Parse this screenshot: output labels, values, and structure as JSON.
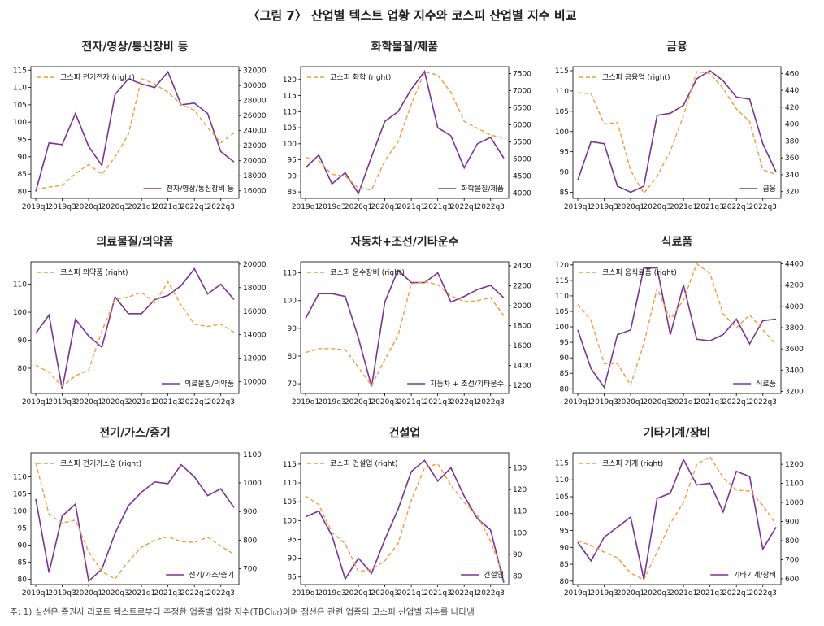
{
  "figure_title": "〈그림 7〉 산업별 텍스트 업황 지수와 코스피 산업별 지수 비교",
  "footnote": "주: 1) 실선은 증권사 리포트 텍스트로부터 추정한 업종별 업황 지수(TBCIᵢ,ₜ)이며 점선은 관련 업종의 코스피 산업별 지수를 나타냄",
  "colors": {
    "text_index": "#7B3294",
    "kospi_index": "#F59A3C"
  },
  "chart_data": [
    {
      "type": "line",
      "title": "전자/영상/통신장비 등",
      "x": [
        "2019q1",
        "2019q2",
        "2019q3",
        "2019q4",
        "2020q1",
        "2020q2",
        "2020q3",
        "2020q4",
        "2021q1",
        "2021q2",
        "2021q3",
        "2021q4",
        "2022q1",
        "2022q2",
        "2022q3",
        "2022q4"
      ],
      "x_tick_labels": [
        "2019q1",
        "2019q3",
        "2020q1",
        "2020q3",
        "2021q1",
        "2021q3",
        "2022q1",
        "2022q3"
      ],
      "ylim_left": [
        78,
        116
      ],
      "yticks_left": [
        80,
        85,
        90,
        95,
        100,
        105,
        110,
        115
      ],
      "ylim_right": [
        15000,
        32500
      ],
      "yticks_right": [
        16000,
        18000,
        20000,
        22000,
        24000,
        26000,
        28000,
        30000,
        32000
      ],
      "series": [
        {
          "name": "전자/영상/통신장비 등",
          "axis": "left",
          "style": "solid",
          "values": [
            80,
            94,
            93.5,
            102.5,
            93,
            87.5,
            108,
            112.5,
            111,
            110,
            114.5,
            105,
            105.5,
            102.5,
            91.5,
            88.5
          ]
        },
        {
          "name": "코스피 전기전자 (right)",
          "axis": "right",
          "style": "dashed",
          "values": [
            16200,
            16500,
            16700,
            18300,
            19500,
            18200,
            20500,
            23500,
            30900,
            30200,
            29100,
            27500,
            26700,
            24400,
            22400,
            23700
          ]
        }
      ],
      "legend": {
        "solid_position": "lower-right",
        "dashed_position": "upper-left"
      }
    },
    {
      "type": "line",
      "title": "화학물질/제품",
      "x": [
        "2019q1",
        "2019q2",
        "2019q3",
        "2019q4",
        "2020q1",
        "2020q2",
        "2020q3",
        "2020q4",
        "2021q1",
        "2021q2",
        "2021q3",
        "2021q4",
        "2022q1",
        "2022q2",
        "2022q3",
        "2022q4"
      ],
      "x_tick_labels": [
        "2019q1",
        "2019q3",
        "2020q1",
        "2020q3",
        "2021q1",
        "2021q3",
        "2022q1",
        "2022q3"
      ],
      "ylim_left": [
        83,
        124
      ],
      "yticks_left": [
        85,
        90,
        95,
        100,
        105,
        110,
        115,
        120
      ],
      "ylim_right": [
        3850,
        7700
      ],
      "yticks_right": [
        4000,
        4500,
        5000,
        5500,
        6000,
        6500,
        7000,
        7500
      ],
      "series": [
        {
          "name": "화학물질/제품",
          "axis": "left",
          "style": "solid",
          "values": [
            92.5,
            96.5,
            87.5,
            91,
            84.5,
            96,
            107,
            110,
            117,
            122.5,
            105,
            102.5,
            92.5,
            100,
            102,
            95.5
          ]
        },
        {
          "name": "코스피 화학 (right)",
          "axis": "right",
          "style": "dashed",
          "values": [
            5050,
            4950,
            4550,
            4500,
            4150,
            4100,
            4950,
            5500,
            6600,
            7550,
            7450,
            6950,
            6100,
            5900,
            5700,
            5620
          ]
        }
      ],
      "legend": {
        "solid_position": "lower-right",
        "dashed_position": "upper-left"
      }
    },
    {
      "type": "line",
      "title": "금융",
      "x": [
        "2019q1",
        "2019q2",
        "2019q3",
        "2019q4",
        "2020q1",
        "2020q2",
        "2020q3",
        "2020q4",
        "2021q1",
        "2021q2",
        "2021q3",
        "2021q4",
        "2022q1",
        "2022q2",
        "2022q3",
        "2022q4"
      ],
      "x_tick_labels": [
        "2019q1",
        "2019q3",
        "2020q1",
        "2020q3",
        "2021q1",
        "2021q3",
        "2022q1",
        "2022q3"
      ],
      "ylim_left": [
        83.5,
        116
      ],
      "yticks_left": [
        85,
        90,
        95,
        100,
        105,
        110,
        115
      ],
      "ylim_right": [
        312,
        468
      ],
      "yticks_right": [
        320,
        340,
        360,
        380,
        400,
        420,
        440,
        460
      ],
      "series": [
        {
          "name": "금융",
          "axis": "left",
          "style": "solid",
          "values": [
            88,
            97.5,
            97,
            86.5,
            85,
            86.5,
            104,
            104.5,
            106.5,
            113,
            115,
            112.5,
            108.5,
            108,
            97,
            90
          ]
        },
        {
          "name": "코스피 금융업 (right)",
          "axis": "right",
          "style": "dashed",
          "values": [
            437,
            436,
            400,
            402,
            345,
            318,
            338,
            368,
            410,
            462,
            460,
            442,
            418,
            403,
            346,
            340
          ]
        }
      ],
      "legend": {
        "solid_position": "lower-right",
        "dashed_position": "upper-left"
      }
    },
    {
      "type": "line",
      "title": "의료물질/의약품",
      "x": [
        "2019q1",
        "2019q2",
        "2019q3",
        "2019q4",
        "2020q1",
        "2020q2",
        "2020q3",
        "2020q4",
        "2021q1",
        "2021q2",
        "2021q3",
        "2021q4",
        "2022q1",
        "2022q2",
        "2022q3",
        "2022q4"
      ],
      "x_tick_labels": [
        "2019q1",
        "2019q3",
        "2020q1",
        "2020q3",
        "2021q1",
        "2021q3",
        "2022q1",
        "2022q3"
      ],
      "ylim_left": [
        71,
        118
      ],
      "yticks_left": [
        80,
        90,
        100,
        110
      ],
      "ylim_right": [
        9000,
        20200
      ],
      "yticks_right": [
        10000,
        12000,
        14000,
        16000,
        18000,
        20000
      ],
      "series": [
        {
          "name": "의료물질/의약품",
          "axis": "left",
          "style": "solid",
          "values": [
            92.5,
            99,
            72.5,
            97.5,
            91.5,
            87.5,
            105.5,
            99.5,
            99.5,
            104.5,
            106,
            109.5,
            115.5,
            106.5,
            110,
            104.5
          ]
        },
        {
          "name": "코스피 의약품 (right)",
          "axis": "right",
          "style": "dashed",
          "values": [
            11400,
            10800,
            9600,
            10500,
            11000,
            14300,
            17000,
            17200,
            17600,
            16700,
            18500,
            16500,
            14900,
            14700,
            14900,
            14200
          ]
        }
      ],
      "legend": {
        "solid_position": "lower-right",
        "dashed_position": "upper-left"
      }
    },
    {
      "type": "line",
      "title": "자동차+조선/기타운수",
      "x": [
        "2019q1",
        "2019q2",
        "2019q3",
        "2019q4",
        "2020q1",
        "2020q2",
        "2020q3",
        "2020q4",
        "2021q1",
        "2021q2",
        "2021q3",
        "2021q4",
        "2022q1",
        "2022q2",
        "2022q3",
        "2022q4"
      ],
      "x_tick_labels": [
        "2019q1",
        "2019q3",
        "2020q1",
        "2020q3",
        "2021q1",
        "2021q3",
        "2022q1",
        "2022q3"
      ],
      "ylim_left": [
        66.5,
        114
      ],
      "yticks_left": [
        70,
        80,
        90,
        100,
        110
      ],
      "ylim_right": [
        1120,
        2440
      ],
      "yticks_right": [
        1200,
        1400,
        1600,
        1800,
        2000,
        2200,
        2400
      ],
      "series": [
        {
          "name": "자동차 + 조선/기타운수",
          "axis": "left",
          "style": "solid",
          "values": [
            93.5,
            102.5,
            102.5,
            101.5,
            86.5,
            69,
            99.5,
            111,
            106.5,
            106.5,
            110,
            99.5,
            101.5,
            104,
            105.5,
            101
          ]
        },
        {
          "name": "코스피 운수장비 (right)",
          "axis": "right",
          "style": "dashed",
          "values": [
            1530,
            1570,
            1570,
            1560,
            1380,
            1200,
            1460,
            1700,
            2220,
            2240,
            2210,
            2100,
            2040,
            2050,
            2080,
            1900
          ]
        }
      ],
      "legend": {
        "solid_position": "lower-right",
        "dashed_position": "upper-left"
      }
    },
    {
      "type": "line",
      "title": "식료품",
      "x": [
        "2019q1",
        "2019q2",
        "2019q3",
        "2019q4",
        "2020q1",
        "2020q2",
        "2020q3",
        "2020q4",
        "2021q1",
        "2021q2",
        "2021q3",
        "2021q4",
        "2022q1",
        "2022q2",
        "2022q3",
        "2022q4"
      ],
      "x_tick_labels": [
        "2019q1",
        "2019q3",
        "2020q1",
        "2020q3",
        "2021q1",
        "2021q3",
        "2022q1",
        "2022q3"
      ],
      "ylim_left": [
        78.5,
        121
      ],
      "yticks_left": [
        80,
        85,
        90,
        95,
        100,
        105,
        110,
        115,
        120
      ],
      "ylim_right": [
        3180,
        4420
      ],
      "yticks_right": [
        3200,
        3400,
        3600,
        3800,
        4000,
        4200,
        4400
      ],
      "series": [
        {
          "name": "식료품",
          "axis": "left",
          "style": "solid",
          "values": [
            99,
            86.5,
            80.5,
            97.5,
            99,
            119,
            119,
            97.5,
            113.5,
            96,
            95.5,
            97.5,
            102.5,
            94.5,
            102,
            102.5
          ]
        },
        {
          "name": "코스피 음식료품 (right)",
          "axis": "right",
          "style": "dashed",
          "values": [
            4020,
            3870,
            3460,
            3460,
            3260,
            3650,
            4170,
            3880,
            4060,
            4400,
            4310,
            3930,
            3800,
            3920,
            3780,
            3640
          ]
        }
      ],
      "legend": {
        "solid_position": "lower-right",
        "dashed_position": "upper-left"
      }
    },
    {
      "type": "line",
      "title": "전기/가스/증기",
      "x": [
        "2019q1",
        "2019q2",
        "2019q3",
        "2019q4",
        "2020q1",
        "2020q2",
        "2020q3",
        "2020q4",
        "2021q1",
        "2021q2",
        "2021q3",
        "2021q4",
        "2022q1",
        "2022q2",
        "2022q3",
        "2022q4"
      ],
      "x_tick_labels": [
        "2019q1",
        "2019q3",
        "2020q1",
        "2020q3",
        "2021q1",
        "2021q3",
        "2022q1",
        "2022q3"
      ],
      "ylim_left": [
        78.5,
        117
      ],
      "yticks_left": [
        80,
        85,
        90,
        95,
        100,
        105,
        110
      ],
      "ylim_right": [
        645,
        1105
      ],
      "yticks_right": [
        700,
        800,
        900,
        1000,
        1100
      ],
      "series": [
        {
          "name": "전기/가스/증기",
          "axis": "left",
          "style": "solid",
          "values": [
            103.5,
            82,
            98.5,
            102,
            79.5,
            83,
            93.5,
            101.5,
            105.5,
            108.5,
            108,
            113.5,
            110,
            104.5,
            106.5,
            101
          ]
        },
        {
          "name": "코스피 전기가스업 (right)",
          "axis": "right",
          "style": "dashed",
          "values": [
            1070,
            890,
            860,
            870,
            760,
            690,
            665,
            725,
            775,
            800,
            812,
            795,
            792,
            810,
            780,
            750
          ]
        }
      ],
      "legend": {
        "solid_position": "lower-right",
        "dashed_position": "upper-left"
      }
    },
    {
      "type": "line",
      "title": "건설업",
      "x": [
        "2019q1",
        "2019q2",
        "2019q3",
        "2019q4",
        "2020q1",
        "2020q2",
        "2020q3",
        "2020q4",
        "2021q1",
        "2021q2",
        "2021q3",
        "2021q4",
        "2022q1",
        "2022q2",
        "2022q3",
        "2022q4"
      ],
      "x_tick_labels": [
        "2019q1",
        "2019q3",
        "2020q1",
        "2020q3",
        "2021q1",
        "2021q3",
        "2022q1",
        "2022q3"
      ],
      "ylim_left": [
        83,
        118
      ],
      "yticks_left": [
        85,
        90,
        95,
        100,
        105,
        110,
        115
      ],
      "ylim_right": [
        76,
        137
      ],
      "yticks_right": [
        80,
        90,
        100,
        110,
        120,
        130
      ],
      "series": [
        {
          "name": "건설업",
          "axis": "left",
          "style": "solid",
          "values": [
            101,
            102.5,
            96,
            84.5,
            90,
            86,
            95,
            103,
            113,
            116,
            110.5,
            114,
            106.5,
            100.5,
            97.5,
            83.5
          ]
        },
        {
          "name": "코스피 건설업 (right)",
          "axis": "right",
          "style": "dashed",
          "values": [
            117,
            113,
            100,
            95,
            82,
            83,
            87,
            95,
            115,
            130,
            132,
            122,
            114,
            108,
            96,
            80
          ]
        }
      ],
      "legend": {
        "solid_position": "lower-right",
        "dashed_position": "upper-left"
      }
    },
    {
      "type": "line",
      "title": "기타기계/장비",
      "x": [
        "2019q1",
        "2019q2",
        "2019q3",
        "2019q4",
        "2020q1",
        "2020q2",
        "2020q3",
        "2020q4",
        "2021q1",
        "2021q2",
        "2021q3",
        "2021q4",
        "2022q1",
        "2022q2",
        "2022q3",
        "2022q4"
      ],
      "x_tick_labels": [
        "2019q1",
        "2019q3",
        "2020q1",
        "2020q3",
        "2021q1",
        "2021q3",
        "2022q1",
        "2022q3"
      ],
      "ylim_left": [
        79,
        118
      ],
      "yticks_left": [
        80,
        85,
        90,
        95,
        100,
        105,
        110,
        115
      ],
      "ylim_right": [
        570,
        1260
      ],
      "yticks_right": [
        600,
        700,
        800,
        900,
        1000,
        1100,
        1200
      ],
      "series": [
        {
          "name": "기타기계/장비",
          "axis": "left",
          "style": "solid",
          "values": [
            91.5,
            86,
            93,
            96,
            99,
            80.5,
            104.5,
            106,
            116,
            108.5,
            109,
            100.5,
            112.5,
            111,
            89.5,
            96
          ]
        },
        {
          "name": "코스피 기계 (right)",
          "axis": "right",
          "style": "dashed",
          "values": [
            800,
            775,
            740,
            710,
            630,
            595,
            740,
            890,
            1000,
            1200,
            1240,
            1130,
            1065,
            1060,
            985,
            885
          ]
        }
      ],
      "legend": {
        "solid_position": "lower-right",
        "dashed_position": "upper-left"
      }
    }
  ]
}
